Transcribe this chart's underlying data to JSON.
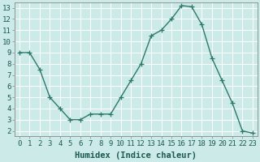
{
  "x": [
    0,
    1,
    2,
    3,
    4,
    5,
    6,
    7,
    8,
    9,
    10,
    11,
    12,
    13,
    14,
    15,
    16,
    17,
    18,
    19,
    20,
    21,
    22,
    23
  ],
  "y": [
    9,
    9,
    7.5,
    5,
    4,
    3,
    3,
    3.5,
    3.5,
    3.5,
    5,
    6.5,
    8,
    10.5,
    11,
    12,
    13.2,
    13.1,
    11.5,
    8.5,
    6.5,
    4.5,
    2,
    1.8
  ],
  "line_color": "#2d7a6a",
  "marker": "+",
  "marker_size": 4,
  "background_color": "#cceae8",
  "grid_color": "#b0d8d4",
  "xlabel": "Humidex (Indice chaleur)",
  "xlim": [
    -0.5,
    23.5
  ],
  "ylim": [
    1.5,
    13.5
  ],
  "yticks": [
    2,
    3,
    4,
    5,
    6,
    7,
    8,
    9,
    10,
    11,
    12,
    13
  ],
  "xtick_labels": [
    "0",
    "1",
    "2",
    "3",
    "4",
    "5",
    "6",
    "7",
    "8",
    "9",
    "10",
    "11",
    "12",
    "13",
    "14",
    "15",
    "16",
    "17",
    "18",
    "19",
    "20",
    "21",
    "22",
    "23"
  ],
  "tick_fontsize": 6.5,
  "label_fontsize": 7.5
}
